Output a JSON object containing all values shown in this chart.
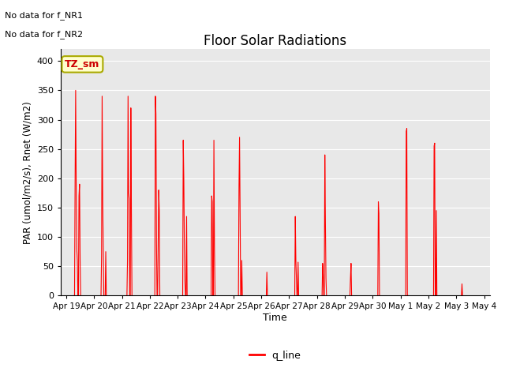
{
  "title": "Floor Solar Radiations",
  "xlabel": "Time",
  "ylabel": "PAR (umol/m2/s), Rnet (W/m2)",
  "text_no_data": [
    "No data for f_NR1",
    "No data for f_NR2"
  ],
  "legend_label": "q_line",
  "legend_color": "#ff0000",
  "plot_bg_color": "#e8e8e8",
  "ylim": [
    0,
    420
  ],
  "yticks": [
    0,
    50,
    100,
    150,
    200,
    250,
    300,
    350,
    400
  ],
  "box_label": "TZ_sm",
  "box_facecolor": "#ffffcc",
  "box_edgecolor": "#aaaa00",
  "box_textcolor": "#cc0000",
  "num_days": 15,
  "date_labels": [
    "Apr 19",
    "Apr 20",
    "Apr 21",
    "Apr 22",
    "Apr 23",
    "Apr 24",
    "Apr 25",
    "Apr 26",
    "Apr 27",
    "Apr 28",
    "Apr 29",
    "Apr 30",
    "May 1",
    "May 2",
    "May 3",
    "May 4"
  ],
  "segments": [
    [
      [
        0.28,
        0
      ],
      [
        0.3,
        0
      ],
      [
        0.32,
        190
      ],
      [
        0.34,
        350
      ],
      [
        0.36,
        185
      ],
      [
        0.38,
        80
      ],
      [
        0.4,
        60
      ],
      [
        0.42,
        0
      ],
      [
        0.44,
        0
      ],
      [
        0.46,
        170
      ],
      [
        0.48,
        190
      ],
      [
        0.5,
        60
      ],
      [
        0.52,
        0
      ]
    ],
    [
      [
        1.25,
        0
      ],
      [
        1.27,
        70
      ],
      [
        1.29,
        340
      ],
      [
        1.31,
        165
      ],
      [
        1.33,
        80
      ],
      [
        1.35,
        0
      ],
      [
        1.4,
        0
      ],
      [
        1.42,
        75
      ],
      [
        1.44,
        0
      ]
    ],
    [
      [
        2.18,
        0
      ],
      [
        2.2,
        60
      ],
      [
        2.22,
        340
      ],
      [
        2.24,
        175
      ],
      [
        2.26,
        165
      ],
      [
        2.28,
        0
      ],
      [
        2.3,
        0
      ],
      [
        2.32,
        320
      ],
      [
        2.34,
        145
      ],
      [
        2.36,
        0
      ]
    ],
    [
      [
        3.18,
        0
      ],
      [
        3.2,
        340
      ],
      [
        3.22,
        310
      ],
      [
        3.24,
        90
      ],
      [
        3.26,
        0
      ],
      [
        3.28,
        0
      ],
      [
        3.3,
        85
      ],
      [
        3.32,
        180
      ],
      [
        3.34,
        145
      ],
      [
        3.36,
        0
      ]
    ],
    [
      [
        4.18,
        0
      ],
      [
        4.2,
        265
      ],
      [
        4.22,
        200
      ],
      [
        4.24,
        90
      ],
      [
        4.26,
        25
      ],
      [
        4.28,
        0
      ],
      [
        4.3,
        0
      ],
      [
        4.32,
        135
      ],
      [
        4.34,
        0
      ]
    ],
    [
      [
        5.2,
        0
      ],
      [
        5.22,
        170
      ],
      [
        5.24,
        160
      ],
      [
        5.26,
        0
      ],
      [
        5.28,
        0
      ],
      [
        5.3,
        265
      ],
      [
        5.32,
        85
      ],
      [
        5.34,
        0
      ]
    ],
    [
      [
        6.18,
        0
      ],
      [
        6.2,
        185
      ],
      [
        6.22,
        270
      ],
      [
        6.24,
        140
      ],
      [
        6.26,
        0
      ],
      [
        6.28,
        0
      ],
      [
        6.3,
        60
      ],
      [
        6.32,
        0
      ]
    ],
    [
      [
        7.18,
        0
      ],
      [
        7.2,
        40
      ],
      [
        7.22,
        0
      ]
    ],
    [
      [
        8.2,
        0
      ],
      [
        8.22,
        135
      ],
      [
        8.24,
        60
      ],
      [
        8.26,
        30
      ],
      [
        8.28,
        0
      ],
      [
        8.3,
        0
      ],
      [
        8.32,
        57
      ],
      [
        8.34,
        0
      ]
    ],
    [
      [
        9.18,
        0
      ],
      [
        9.2,
        55
      ],
      [
        9.22,
        35
      ],
      [
        9.24,
        0
      ],
      [
        9.26,
        0
      ],
      [
        9.28,
        240
      ],
      [
        9.3,
        125
      ],
      [
        9.32,
        30
      ],
      [
        9.34,
        0
      ]
    ],
    [
      [
        10.18,
        0
      ],
      [
        10.2,
        30
      ],
      [
        10.22,
        55
      ],
      [
        10.24,
        0
      ]
    ],
    [
      [
        11.18,
        0
      ],
      [
        11.2,
        160
      ],
      [
        11.22,
        140
      ],
      [
        11.24,
        0
      ]
    ],
    [
      [
        12.18,
        0
      ],
      [
        12.2,
        280
      ],
      [
        12.22,
        285
      ],
      [
        12.24,
        0
      ],
      [
        12.26,
        0
      ],
      [
        12.28,
        0
      ]
    ],
    [
      [
        13.18,
        0
      ],
      [
        13.2,
        255
      ],
      [
        13.22,
        260
      ],
      [
        13.24,
        0
      ],
      [
        13.26,
        0
      ],
      [
        13.28,
        145
      ],
      [
        13.3,
        0
      ]
    ],
    [
      [
        14.18,
        0
      ],
      [
        14.2,
        20
      ],
      [
        14.22,
        0
      ]
    ]
  ]
}
